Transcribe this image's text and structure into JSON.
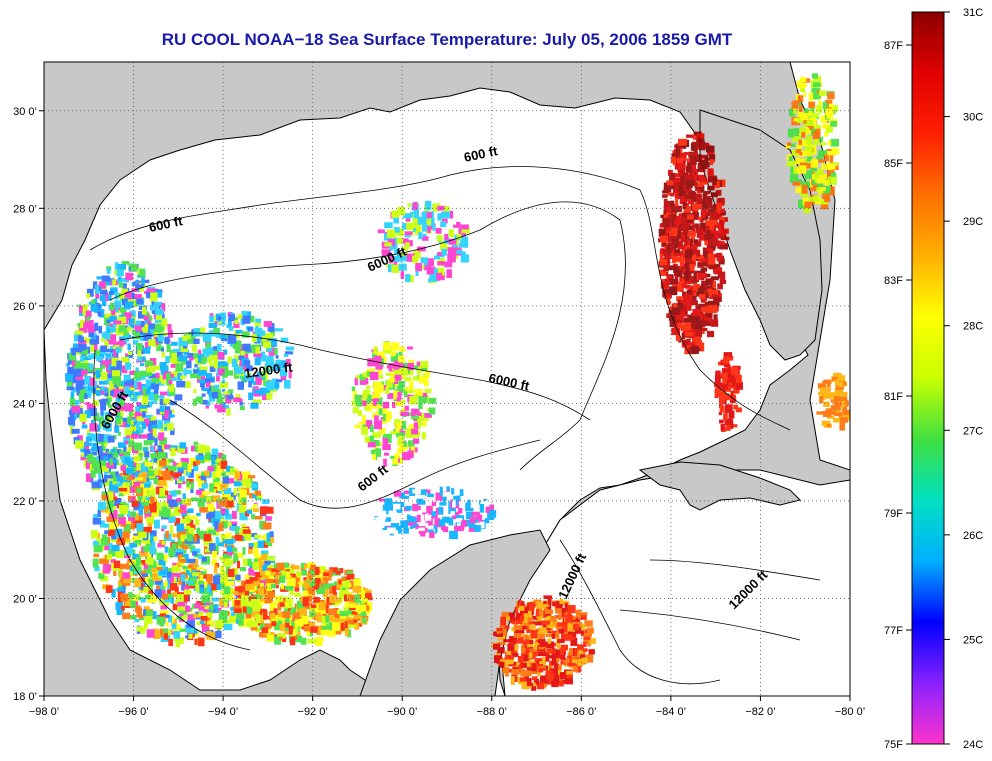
{
  "title": "RU COOL  NOAA−18  Sea Surface Temperature:  July 05, 2006 1859 GMT",
  "map": {
    "lon_range": [
      -98,
      -80
    ],
    "lat_range": [
      18,
      31
    ],
    "lon_ticks": [
      "−98 0’",
      "−96 0’",
      "−94 0’",
      "−92 0’",
      "−90 0’",
      "−88 0’",
      "−86 0’",
      "−84 0’",
      "−82 0’",
      "−80 0’"
    ],
    "lat_ticks": [
      "18 0’",
      "20 0’",
      "22 0’",
      "24 0’",
      "26 0’",
      "28 0’",
      "30 0’"
    ],
    "land_color": "#c8c8c8",
    "water_color": "#ffffff",
    "contour_labels": [
      "600 ft",
      "600 ft",
      "6000 ft",
      "12000 ft",
      "6000 ft",
      "6000 ft",
      "600 ft",
      "12000 ft",
      "12000 ft"
    ]
  },
  "colorbar": {
    "celsius": [
      "31C",
      "30C",
      "29C",
      "28C",
      "27C",
      "26C",
      "25C",
      "24C"
    ],
    "fahrenheit": [
      "87F",
      "85F",
      "83F",
      "81F",
      "79F",
      "77F",
      "75F"
    ],
    "colors": [
      "#ff33cc",
      "#8822ff",
      "#0000ff",
      "#00b0ff",
      "#00e0c0",
      "#40e040",
      "#c8ff00",
      "#ffff00",
      "#ffb000",
      "#ff7000",
      "#ff2000",
      "#e00000",
      "#8b0000"
    ]
  }
}
